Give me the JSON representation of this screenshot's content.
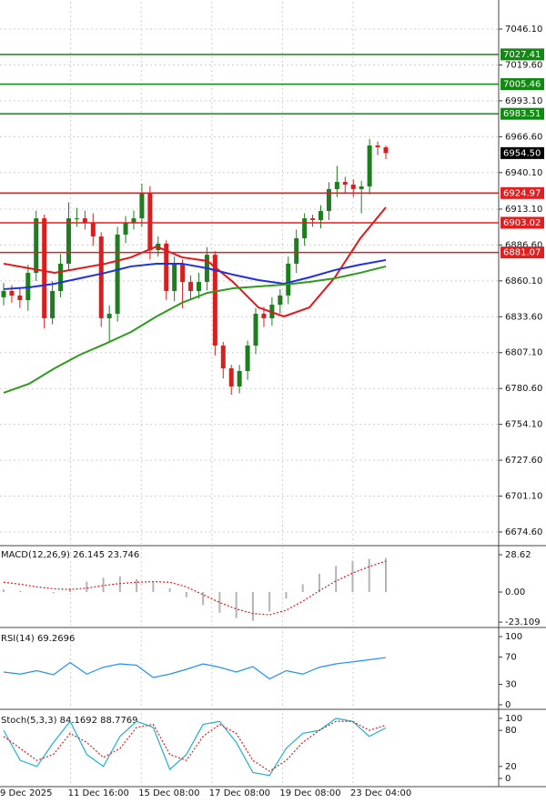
{
  "chart_data": [
    {
      "type": "candlestick",
      "ylim": [
        6664.5,
        7067.6
      ],
      "yticks": [
        {
          "value": 7046.1,
          "label": "7046.10"
        },
        {
          "value": 7019.6,
          "label": "7019.60"
        },
        {
          "value": 6993.1,
          "label": "6993.10"
        },
        {
          "value": 6966.6,
          "label": "6966.60"
        },
        {
          "value": 6940.1,
          "label": "6940.10"
        },
        {
          "value": 6913.1,
          "label": "6913.10"
        },
        {
          "value": 6886.6,
          "label": "6886.60"
        },
        {
          "value": 6860.1,
          "label": "6860.10"
        },
        {
          "value": 6833.6,
          "label": "6833.60"
        },
        {
          "value": 6807.1,
          "label": "6807.10"
        },
        {
          "value": 6780.6,
          "label": "6780.60"
        },
        {
          "value": 6754.1,
          "label": "6754.10"
        },
        {
          "value": 6727.6,
          "label": "6727.60"
        },
        {
          "value": 6701.1,
          "label": "6701.10"
        },
        {
          "value": 6674.6,
          "label": "6674.60"
        }
      ],
      "grid": true,
      "up_color": "#1e7d1e",
      "down_color": "#d62020",
      "open": [
        6848.0,
        6852.6,
        6849.3,
        6845.9,
        6866.0,
        6906.3,
        6832.5,
        6852.6,
        6872.8,
        6906.3,
        6906.3,
        6903.0,
        6892.9,
        6832.5,
        6835.8,
        6894.3,
        6903.0,
        6906.3,
        6925.3,
        6882.8,
        6887.6,
        6852.6,
        6872.8,
        6859.3,
        6852.6,
        6859.3,
        6879.4,
        6812.3,
        6795.5,
        6782.1,
        6793.5,
        6812.3,
        6835.8,
        6832.5,
        6842.5,
        6849.3,
        6872.8,
        6891.6,
        6906.3,
        6905.0,
        6911.7,
        6927.9,
        6933.2,
        6931.2,
        6927.9,
        6929.9,
        6960.1,
        6958.8
      ],
      "high": [
        6858.6,
        6857.0,
        6855.0,
        6872.0,
        6912.0,
        6909.0,
        6860.0,
        6880.0,
        6918.0,
        6914.0,
        6912.0,
        6910.0,
        6896.0,
        6842.0,
        6900.0,
        6908.0,
        6912.0,
        6932.0,
        6930.0,
        6893.0,
        6890.0,
        6878.0,
        6876.0,
        6864.0,
        6866.0,
        6885.0,
        6882.0,
        6815.0,
        6798.0,
        6798.0,
        6816.0,
        6840.0,
        6841.0,
        6848.0,
        6854.0,
        6878.0,
        6898.0,
        6910.0,
        6909.0,
        6916.0,
        6933.0,
        6945.0,
        6937.0,
        6935.0,
        6934.0,
        6965.0,
        6963.0,
        6960.0
      ],
      "low": [
        6842.0,
        6844.0,
        6840.0,
        6838.0,
        6860.0,
        6825.0,
        6828.0,
        6848.0,
        6868.0,
        6900.0,
        6898.0,
        6886.0,
        6826.0,
        6815.0,
        6830.0,
        6888.0,
        6898.0,
        6900.0,
        6876.0,
        6878.0,
        6846.0,
        6845.0,
        6840.0,
        6846.0,
        6847.0,
        6853.0,
        6805.0,
        6788.0,
        6776.0,
        6777.0,
        6787.0,
        6806.0,
        6826.0,
        6827.0,
        6836.0,
        6843.0,
        6866.0,
        6886.0,
        6900.0,
        6899.0,
        6905.0,
        6922.0,
        6925.0,
        6922.0,
        6910.0,
        6924.0,
        6953.0,
        6950.0
      ],
      "close": [
        6852.6,
        6849.3,
        6845.9,
        6866.0,
        6906.3,
        6832.5,
        6852.6,
        6872.8,
        6906.3,
        6906.3,
        6903.0,
        6892.9,
        6832.5,
        6835.8,
        6894.3,
        6903.0,
        6906.3,
        6925.3,
        6882.8,
        6887.6,
        6852.6,
        6872.8,
        6859.3,
        6852.6,
        6859.3,
        6879.4,
        6812.3,
        6795.5,
        6782.1,
        6793.5,
        6812.3,
        6835.8,
        6832.5,
        6842.5,
        6849.3,
        6872.8,
        6891.6,
        6906.3,
        6905.0,
        6911.7,
        6927.9,
        6933.2,
        6931.2,
        6927.9,
        6929.9,
        6960.1,
        6958.8,
        6954.5
      ],
      "series": [
        {
          "color": "#e8161b",
          "values": [
            6872.8,
            6869.4,
            6866.1,
            6869.4,
            6872.8,
            6877.5,
            6885.5,
            6877.5,
            6874.8,
            6859.3,
            6840.5,
            6833.8,
            6840.5,
            6862.7,
            6891.6,
            6914.4
          ]
        },
        {
          "color": "#2030e0",
          "values": [
            6854.0,
            6855.3,
            6858.0,
            6862.0,
            6866.1,
            6870.8,
            6872.8,
            6872.8,
            6869.4,
            6864.7,
            6860.7,
            6858.0,
            6862.7,
            6868.1,
            6872.1,
            6875.5
          ]
        },
        {
          "color": "#2e9a1e",
          "values": [
            6777.4,
            6784.1,
            6795.5,
            6805.6,
            6813.7,
            6822.4,
            6833.8,
            6843.9,
            6851.3,
            6854.6,
            6856.0,
            6857.3,
            6859.3,
            6862.0,
            6866.1,
            6870.8
          ]
        }
      ],
      "levels": [
        {
          "value": 7027.41,
          "color": "#118a11"
        },
        {
          "value": 7005.46,
          "color": "#118a11"
        },
        {
          "value": 6983.51,
          "color": "#118a11"
        },
        {
          "value": 6924.97,
          "color": "#e02020"
        },
        {
          "value": 6903.02,
          "color": "#e02020"
        },
        {
          "value": 6881.07,
          "color": "#e02020"
        }
      ],
      "last_price": {
        "value": 6954.5,
        "label": "6954.50"
      }
    },
    {
      "type": "macd",
      "title": "MACD(12,26,9) 26.145 23.746",
      "ylim": [
        -27.2,
        35.6
      ],
      "yticks": [
        28.62,
        {
          "value": 0,
          "label": "0.00"
        },
        -23.109
      ],
      "series": [
        {
          "style": "bar",
          "color": "#b4b4b4",
          "values": [
            2,
            1,
            0,
            -1,
            3,
            8,
            11,
            12,
            10,
            8,
            3,
            -4,
            -10,
            -16,
            -20,
            -22,
            -15,
            -5,
            6,
            14,
            20,
            24,
            25.5,
            26.145
          ]
        },
        {
          "style": "dotted",
          "color": "#e8161b",
          "values": [
            7.5,
            6,
            4,
            2.5,
            2,
            3,
            5,
            6.5,
            7.5,
            8,
            7.5,
            4,
            -2,
            -8,
            -13,
            -16.5,
            -17.5,
            -14,
            -7,
            1,
            8.5,
            14.5,
            19.5,
            23.746
          ]
        }
      ]
    },
    {
      "type": "line",
      "title": "RSI(14) 69.2696",
      "ylim": [
        -6.7,
        110.7
      ],
      "yticks": [
        100,
        70,
        30,
        0
      ],
      "series": [
        {
          "style": "solid",
          "color": "#1e90ff",
          "values": [
            48,
            45,
            50,
            44,
            62,
            45,
            55,
            60,
            58,
            40,
            45,
            52,
            60,
            55,
            48,
            56,
            38,
            50,
            45,
            55,
            60,
            63,
            66,
            69.2696
          ]
        }
      ]
    },
    {
      "type": "line",
      "title": "Stoch(5,3,3) 84.1692 88.7769",
      "ylim": [
        -13.6,
        112
      ],
      "yticks": [
        100,
        80,
        20,
        0
      ],
      "series": [
        {
          "style": "solid",
          "color": "#20b2c8",
          "values": [
            80,
            30,
            20,
            60,
            95,
            40,
            20,
            70,
            95,
            85,
            15,
            40,
            90,
            95,
            60,
            10,
            5,
            50,
            75,
            80,
            100,
            95,
            70,
            84.1692
          ]
        },
        {
          "style": "dotted",
          "color": "#e8161b",
          "values": [
            70,
            50,
            30,
            40,
            75,
            60,
            35,
            50,
            85,
            90,
            40,
            30,
            70,
            90,
            75,
            30,
            12,
            30,
            60,
            80,
            95,
            95,
            80,
            88.7769
          ]
        }
      ],
      "x_labels": [
        "9 Dec 2025",
        "11 Dec 16:00",
        "15 Dec 08:00",
        "17 Dec 08:00",
        "19 Dec 08:00",
        "23 Dec 04:00"
      ]
    }
  ]
}
